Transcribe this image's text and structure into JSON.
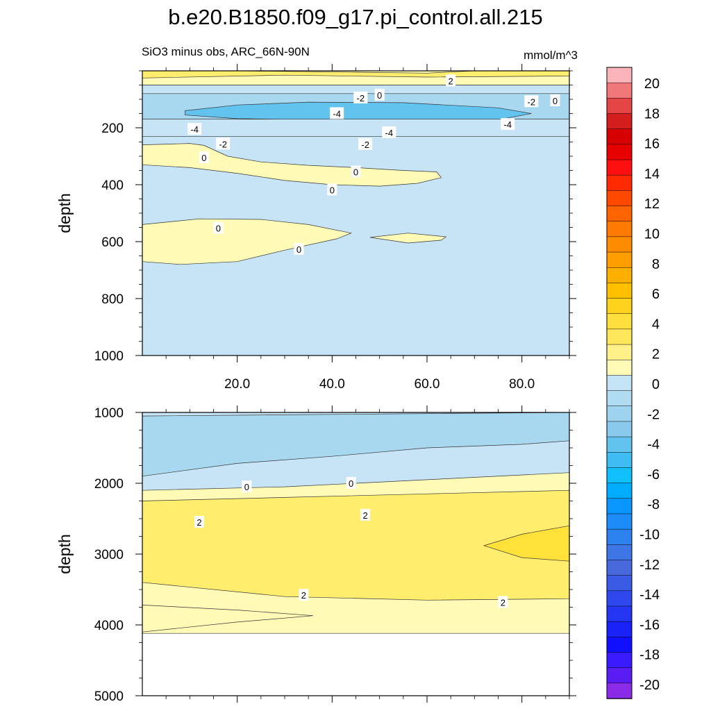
{
  "figure": {
    "title": "b.e20.B1850.f09_g17.pi_control.all.215",
    "left_subtitle": "SiO3 minus obs, ARC_66N-90N",
    "right_subtitle": "mmol/m^3"
  },
  "chart_data": [
    {
      "type": "contour",
      "panel": "upper",
      "ylabel": "depth",
      "xlabel": "",
      "xlim": [
        0,
        90
      ],
      "ylim": [
        1000,
        0
      ],
      "y_reversed": true,
      "xticks": [
        20.0,
        40.0,
        60.0,
        80.0
      ],
      "xtick_labels": [
        "20.0",
        "40.0",
        "60.0",
        "80.0"
      ],
      "yticks": [
        200,
        400,
        600,
        800,
        1000
      ],
      "ytick_labels": [
        "200",
        "400",
        "600",
        "800",
        "1000"
      ],
      "background_level": "-2 to 0",
      "regions": [
        {
          "level": "-2 to 0",
          "x": [
            0,
            90,
            90,
            0
          ],
          "y": [
            0,
            0,
            1000,
            1000
          ]
        },
        {
          "level": "0 to 2",
          "x": [
            0,
            90,
            90,
            0
          ],
          "y": [
            0,
            0,
            50,
            50
          ]
        },
        {
          "level": "2 to 4",
          "x": [
            0,
            20,
            45,
            60,
            70,
            90,
            90,
            60,
            30,
            0
          ],
          "y": [
            0,
            0,
            5,
            8,
            0,
            0,
            18,
            22,
            15,
            25
          ]
        },
        {
          "level": "-2 to 0",
          "x": [
            0,
            90,
            90,
            0
          ],
          "y": [
            50,
            50,
            80,
            80
          ]
        },
        {
          "level": "-4 to -2",
          "x": [
            0,
            90,
            90,
            0
          ],
          "y": [
            80,
            80,
            170,
            170
          ]
        },
        {
          "level": "-6 to -4",
          "x": [
            9,
            20,
            35,
            55,
            75,
            82,
            75,
            55,
            35,
            20,
            9
          ],
          "y": [
            140,
            120,
            110,
            112,
            130,
            150,
            172,
            178,
            172,
            168,
            155
          ]
        },
        {
          "level": "-2 to 0",
          "x": [
            0,
            90,
            90,
            0
          ],
          "y": [
            170,
            170,
            230,
            230
          ]
        },
        {
          "level": "0 to 2",
          "x": [
            0,
            10,
            13,
            18,
            25,
            35,
            45,
            55,
            62,
            63,
            58,
            50,
            40,
            30,
            20,
            10,
            0
          ],
          "y": [
            260,
            255,
            262,
            300,
            320,
            332,
            340,
            350,
            355,
            375,
            395,
            405,
            400,
            385,
            360,
            340,
            330
          ]
        },
        {
          "level": "0 to 2",
          "x": [
            0,
            12,
            25,
            35,
            44,
            41,
            30,
            20,
            8,
            0
          ],
          "y": [
            540,
            520,
            522,
            540,
            570,
            590,
            630,
            670,
            680,
            670
          ]
        },
        {
          "level": "0 to 2",
          "x": [
            48,
            56,
            64,
            63,
            56,
            50
          ],
          "y": [
            585,
            570,
            583,
            595,
            605,
            590
          ]
        }
      ],
      "contour_labels": [
        {
          "text": "2",
          "x": 65,
          "y": 35
        },
        {
          "text": "0",
          "x": 50,
          "y": 85
        },
        {
          "text": "-2",
          "x": 46,
          "y": 95
        },
        {
          "text": "-2",
          "x": 82,
          "y": 108
        },
        {
          "text": "0",
          "x": 87,
          "y": 105
        },
        {
          "text": "-4",
          "x": 41,
          "y": 150
        },
        {
          "text": "-4",
          "x": 77,
          "y": 188
        },
        {
          "text": "-4",
          "x": 11,
          "y": 205
        },
        {
          "text": "-4",
          "x": 52,
          "y": 217
        },
        {
          "text": "-2",
          "x": 17,
          "y": 257
        },
        {
          "text": "-2",
          "x": 47,
          "y": 258
        },
        {
          "text": "0",
          "x": 13,
          "y": 305
        },
        {
          "text": "0",
          "x": 45,
          "y": 355
        },
        {
          "text": "0",
          "x": 40,
          "y": 418
        },
        {
          "text": "0",
          "x": 16,
          "y": 553
        },
        {
          "text": "0",
          "x": 33,
          "y": 627
        }
      ]
    },
    {
      "type": "contour",
      "panel": "lower",
      "ylabel": "depth",
      "xlabel": "",
      "xlim": [
        0,
        90
      ],
      "ylim": [
        5000,
        1000
      ],
      "y_reversed": true,
      "yticks": [
        1000,
        2000,
        3000,
        4000,
        5000
      ],
      "ytick_labels": [
        "1000",
        "2000",
        "3000",
        "4000",
        "5000"
      ],
      "data_bottom_depth": 4120,
      "regions": [
        {
          "level": "0 to 2",
          "x": [
            0,
            90,
            90,
            0
          ],
          "y": [
            1000,
            1000,
            4120,
            4120
          ]
        },
        {
          "level": "-2 to 0",
          "x": [
            0,
            30,
            60,
            90,
            90,
            60,
            30,
            0
          ],
          "y": [
            1000,
            1000,
            1000,
            1000,
            1850,
            1950,
            2050,
            2100
          ]
        },
        {
          "level": "-4 to -2",
          "x": [
            0,
            90,
            90,
            80,
            60,
            40,
            20,
            0
          ],
          "y": [
            1050,
            1000,
            1400,
            1450,
            1500,
            1620,
            1720,
            1900
          ]
        },
        {
          "level": "2 to 4",
          "x": [
            0,
            30,
            60,
            90,
            90,
            60,
            30,
            0
          ],
          "y": [
            2250,
            2200,
            2150,
            2100,
            3630,
            3650,
            3600,
            3400
          ]
        },
        {
          "level": "4 to 6",
          "x": [
            90,
            80,
            72,
            80,
            90
          ],
          "y": [
            2600,
            2720,
            2880,
            3050,
            3100
          ]
        },
        {
          "level": "0 to 2",
          "x": [
            0,
            20,
            36,
            20,
            0
          ],
          "y": [
            3720,
            3790,
            3870,
            3960,
            4100
          ]
        }
      ],
      "contour_labels": [
        {
          "text": "0",
          "x": 22,
          "y": 2050
        },
        {
          "text": "0",
          "x": 44,
          "y": 2000
        },
        {
          "text": "2",
          "x": 12,
          "y": 2550
        },
        {
          "text": "2",
          "x": 47,
          "y": 2450
        },
        {
          "text": "2",
          "x": 34,
          "y": 3580
        },
        {
          "text": "2",
          "x": 76,
          "y": 3680
        }
      ]
    }
  ],
  "colorbar": {
    "units": "mmol/m^3",
    "tick_labels": [
      "20",
      "18",
      "16",
      "14",
      "12",
      "10",
      "8",
      "6",
      "4",
      "2",
      "0",
      "-2",
      "-4",
      "-6",
      "-8",
      "-10",
      "-12",
      "-14",
      "-16",
      "-18",
      "-20"
    ],
    "levels_top_to_bottom": [
      {
        "range": "20 to 22",
        "color": "#fbb4b9"
      },
      {
        "range": "18 to 20",
        "color": "#f0787a"
      },
      {
        "range": "17 to 18",
        "color": "#e54545"
      },
      {
        "range": "16 to 17",
        "color": "#d41e1e"
      },
      {
        "range": "15 to 16",
        "color": "#d70000"
      },
      {
        "range": "14 to 15",
        "color": "#e60000"
      },
      {
        "range": "13 to 14",
        "color": "#ff1010"
      },
      {
        "range": "12 to 13",
        "color": "#ff2a00"
      },
      {
        "range": "11 to 12",
        "color": "#ff4800"
      },
      {
        "range": "10 to 11",
        "color": "#ff6400"
      },
      {
        "range": "9 to 10",
        "color": "#ff7a00"
      },
      {
        "range": "8 to 9",
        "color": "#ff8c00"
      },
      {
        "range": "7 to 8",
        "color": "#ff9e00"
      },
      {
        "range": "6 to 7",
        "color": "#ffaf00"
      },
      {
        "range": "5 to 6",
        "color": "#ffc000"
      },
      {
        "range": "4 to 5",
        "color": "#ffd21e"
      },
      {
        "range": "3 to 4",
        "color": "#ffdf3d"
      },
      {
        "range": "2 to 3",
        "color": "#ffe75c"
      },
      {
        "range": "1 to 2",
        "color": "#fff08a"
      },
      {
        "range": "0 to 1",
        "color": "#fffab5"
      },
      {
        "range": "-1 to 0",
        "color": "#c4e4f5"
      },
      {
        "range": "-2 to -1",
        "color": "#b0dcf2"
      },
      {
        "range": "-3 to -2",
        "color": "#9dd3ee"
      },
      {
        "range": "-4 to -3",
        "color": "#88c9ec"
      },
      {
        "range": "-5 to -4",
        "color": "#62c3ef"
      },
      {
        "range": "-6 to -5",
        "color": "#3fbcf4"
      },
      {
        "range": "-7 to -6",
        "color": "#11c0ff"
      },
      {
        "range": "-8 to -7",
        "color": "#00acff"
      },
      {
        "range": "-9 to -8",
        "color": "#0a96ff"
      },
      {
        "range": "-10 to -9",
        "color": "#1d8cf8"
      },
      {
        "range": "-11 to -10",
        "color": "#2e82f0"
      },
      {
        "range": "-12 to -11",
        "color": "#3f76e6"
      },
      {
        "range": "-13 to -12",
        "color": "#4868dc"
      },
      {
        "range": "-14 to -13",
        "color": "#3a5be6"
      },
      {
        "range": "-15 to -14",
        "color": "#2f48ee"
      },
      {
        "range": "-16 to -15",
        "color": "#2436f2"
      },
      {
        "range": "-17 to -16",
        "color": "#1a22f8"
      },
      {
        "range": "-18 to -17",
        "color": "#1010ff"
      },
      {
        "range": "-19 to -18",
        "color": "#3a1aff"
      },
      {
        "range": "-20 to -19",
        "color": "#5a1cf5"
      },
      {
        "range": "-22 to -20",
        "color": "#8a2be8"
      }
    ]
  },
  "colors": {
    "-6 to -4": "#62c3ef",
    "-4 to -2": "#a8d8f0",
    "-2 to 0": "#c6e4f5",
    "0 to 2": "#fffab5",
    "2 to 4": "#ffed6e",
    "4 to 6": "#ffe13a"
  }
}
